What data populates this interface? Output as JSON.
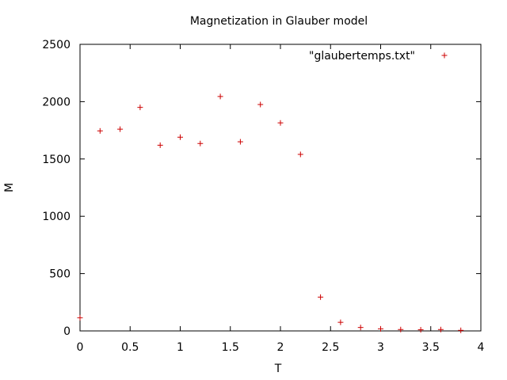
{
  "chart_data": {
    "type": "scatter",
    "title": "Magnetization in Glauber model",
    "xlabel": "T",
    "ylabel": "M",
    "xlim": [
      0,
      4
    ],
    "ylim": [
      0,
      2500
    ],
    "xticks": [
      0,
      0.5,
      1,
      1.5,
      2,
      2.5,
      3,
      3.5,
      4
    ],
    "xtick_labels": [
      "0",
      "0.5",
      "1",
      "1.5",
      "2",
      "2.5",
      "3",
      "3.5",
      "4"
    ],
    "yticks": [
      0,
      500,
      1000,
      1500,
      2000,
      2500
    ],
    "ytick_labels": [
      "0",
      "500",
      "1000",
      "1500",
      "2000",
      "2500"
    ],
    "grid": false,
    "legend_position": "top-right",
    "series": [
      {
        "name": "\"glaubertemps.txt\"",
        "color": "#cc0000",
        "marker": "plus",
        "points": [
          [
            0.0,
            115
          ],
          [
            0.2,
            1745
          ],
          [
            0.4,
            1760
          ],
          [
            0.6,
            1950
          ],
          [
            0.8,
            1620
          ],
          [
            1.0,
            1690
          ],
          [
            1.2,
            1635
          ],
          [
            1.4,
            2045
          ],
          [
            1.6,
            1650
          ],
          [
            1.8,
            1975
          ],
          [
            2.0,
            1815
          ],
          [
            2.2,
            1540
          ],
          [
            2.4,
            295
          ],
          [
            2.6,
            75
          ],
          [
            2.8,
            30
          ],
          [
            3.0,
            18
          ],
          [
            3.2,
            12
          ],
          [
            3.4,
            10
          ],
          [
            3.6,
            12
          ],
          [
            3.8,
            5
          ]
        ]
      }
    ]
  }
}
